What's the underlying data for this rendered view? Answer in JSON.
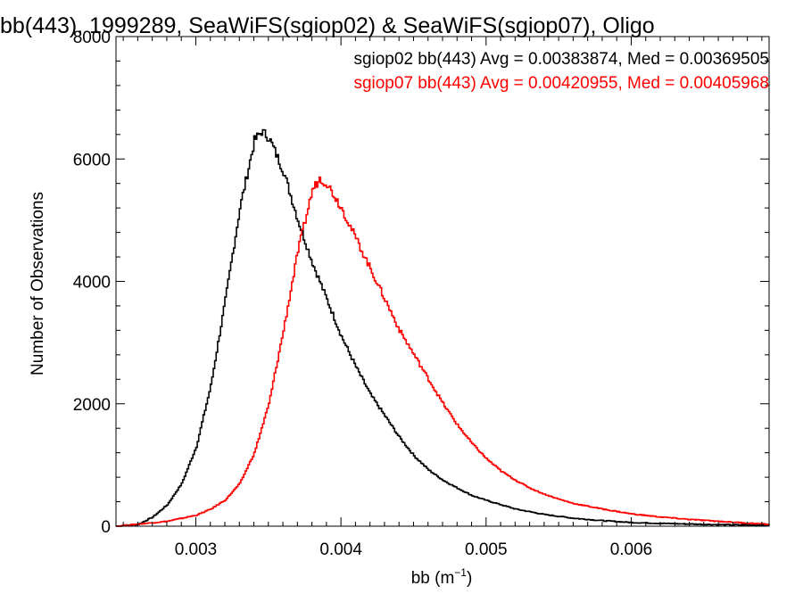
{
  "chart_data": {
    "type": "line",
    "step": true,
    "title": "bb(443), 1999289, SeaWiFS(sgiop02) & SeaWiFS(sgiop07), Oligo",
    "xlabel": "bb (m",
    "xlabel_sup": "−1",
    "xlabel_end": ")",
    "ylabel": "Number of Observations",
    "xlim": [
      0.00245,
      0.00695
    ],
    "ylim": [
      0,
      8000
    ],
    "xticks": [
      0.003,
      0.004,
      0.005,
      0.006
    ],
    "xtick_labels": [
      "0.003",
      "0.004",
      "0.005",
      "0.006"
    ],
    "yticks": [
      0,
      2000,
      4000,
      6000,
      8000
    ],
    "ytick_labels": [
      "0",
      "2000",
      "4000",
      "6000",
      "8000"
    ],
    "grid": false,
    "legend_placement": "top-right",
    "series": [
      {
        "name": "sgiop02 bb(443) Avg = 0.00383874, Med = 0.00369505",
        "color": "#000000",
        "x": [
          0.00245,
          0.0026,
          0.0027,
          0.0028,
          0.0029,
          0.003,
          0.0031,
          0.0032,
          0.0033,
          0.0034,
          0.00345,
          0.0035,
          0.0036,
          0.0037,
          0.0038,
          0.0039,
          0.004,
          0.0041,
          0.0042,
          0.0043,
          0.0044,
          0.0045,
          0.0046,
          0.0047,
          0.0048,
          0.0049,
          0.005,
          0.0052,
          0.0054,
          0.0056,
          0.0058,
          0.006,
          0.0063,
          0.0066,
          0.00695
        ],
        "y": [
          0,
          30,
          150,
          350,
          700,
          1300,
          2300,
          3700,
          5200,
          6300,
          6450,
          6350,
          5800,
          5000,
          4300,
          3700,
          3100,
          2600,
          2150,
          1800,
          1450,
          1150,
          920,
          750,
          620,
          500,
          420,
          280,
          190,
          130,
          90,
          60,
          40,
          25,
          15
        ]
      },
      {
        "name": "sgiop07 bb(443) Avg = 0.00420955, Med = 0.00405968",
        "color": "#ff0000",
        "x": [
          0.00245,
          0.0028,
          0.003,
          0.0031,
          0.0032,
          0.0033,
          0.0034,
          0.0035,
          0.0036,
          0.0037,
          0.0038,
          0.00385,
          0.0039,
          0.004,
          0.0041,
          0.0042,
          0.0043,
          0.0044,
          0.0045,
          0.0046,
          0.0047,
          0.0048,
          0.0049,
          0.005,
          0.0051,
          0.0052,
          0.0053,
          0.0054,
          0.0055,
          0.0056,
          0.0058,
          0.006,
          0.0062,
          0.0064,
          0.0066,
          0.0068,
          0.00695
        ],
        "y": [
          0,
          80,
          180,
          280,
          430,
          700,
          1200,
          2000,
          3200,
          4500,
          5500,
          5680,
          5600,
          5200,
          4700,
          4200,
          3700,
          3200,
          2800,
          2400,
          2000,
          1650,
          1350,
          1100,
          900,
          750,
          620,
          520,
          440,
          370,
          280,
          200,
          150,
          110,
          80,
          50,
          30
        ]
      }
    ]
  }
}
